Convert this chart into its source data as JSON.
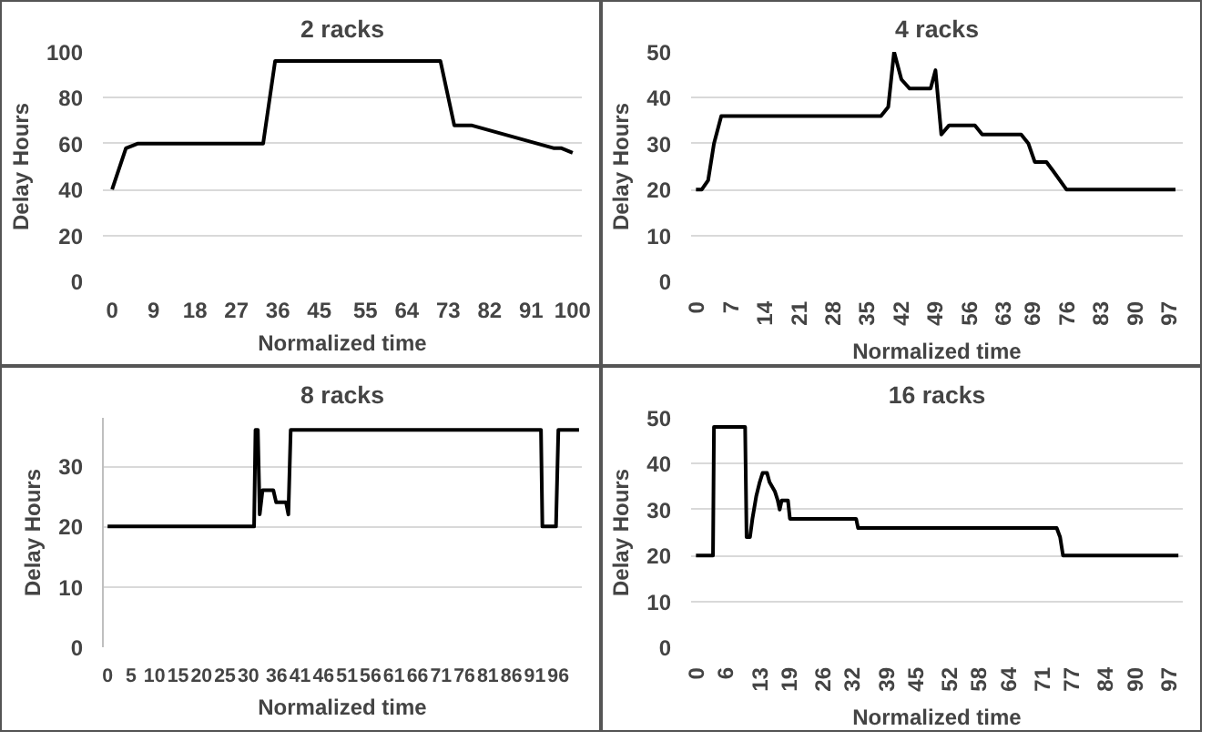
{
  "chart_data": [
    {
      "type": "line",
      "title": "2 racks",
      "xlabel": "Normalized time",
      "ylabel": "Delay Hours",
      "color": "#000000",
      "grid": "y",
      "line_style": "solid",
      "x": [
        0,
        3,
        5.5,
        32.8,
        35.4,
        71.3,
        74.3,
        78,
        96,
        97.6,
        100
      ],
      "values": [
        40,
        58,
        60,
        60,
        96,
        96,
        68,
        68,
        58,
        58,
        56
      ],
      "xlim": [
        -2,
        102
      ],
      "xticks": [
        0,
        9,
        18,
        27,
        36,
        45,
        55,
        64,
        73,
        82,
        91,
        100
      ],
      "ylim": [
        0,
        100
      ],
      "yticks": [
        0,
        20,
        40,
        60,
        80,
        100
      ]
    },
    {
      "type": "line",
      "title": "4 racks",
      "xlabel": "Normalized time",
      "ylabel": "Delay Hours",
      "color": "#000000",
      "grid": "y",
      "line_style": "solid",
      "x": [
        0,
        1.2,
        2.5,
        3.7,
        5.2,
        38,
        39.5,
        40.7,
        42.2,
        43.9,
        48.2,
        49.2,
        50.4,
        52,
        57.3,
        58.8,
        66.8,
        68.3,
        69.6,
        72,
        73.4,
        76.1,
        98.5
      ],
      "values": [
        20,
        20,
        22,
        30,
        36,
        36,
        38,
        50,
        44,
        42,
        42,
        46,
        32,
        34,
        34,
        32,
        32,
        30,
        26,
        26,
        24,
        20,
        20
      ],
      "xlim": [
        -1,
        100
      ],
      "xticks": [
        0,
        7,
        14,
        21,
        28,
        35,
        42,
        49,
        56,
        63,
        69,
        76,
        83,
        90,
        97
      ],
      "ylim": [
        0,
        50
      ],
      "yticks": [
        0,
        10,
        20,
        30,
        40,
        50
      ]
    },
    {
      "type": "line",
      "title": "8 racks",
      "xlabel": "Normalized time",
      "ylabel": "Delay Hours",
      "color": "#000000",
      "grid": "y",
      "line_style": "solid",
      "x": [
        0,
        31.2,
        31.5,
        32,
        32.4,
        33,
        35.3,
        35.9,
        38,
        38.5,
        39,
        92.3,
        92.6,
        95.5,
        96,
        100.4
      ],
      "values": [
        20,
        20,
        36,
        36,
        22,
        26,
        26,
        24,
        24,
        22,
        36,
        36,
        20,
        20,
        36,
        36
      ],
      "xlim": [
        -1,
        101
      ],
      "xticks": [
        0,
        5,
        10,
        15,
        20,
        25,
        30,
        36,
        41,
        46,
        51,
        56,
        61,
        66,
        71,
        76,
        81,
        86,
        91,
        96
      ],
      "ylim": [
        0,
        38
      ],
      "yticks": [
        0,
        10,
        20,
        30
      ]
    },
    {
      "type": "line",
      "title": "16 racks",
      "xlabel": "Normalized time",
      "ylabel": "Delay Hours",
      "color": "#000000",
      "grid": "y",
      "line_style": "solid",
      "x": [
        0,
        3.5,
        3.7,
        10.1,
        10.4,
        11.1,
        11.6,
        12.4,
        13.1,
        13.7,
        14.6,
        15.1,
        16.2,
        16.8,
        17.2,
        17.6,
        18.9,
        19.3,
        32.9,
        33.3,
        74.1,
        74.8,
        75.4,
        99.1
      ],
      "values": [
        20,
        20,
        48,
        48,
        24,
        24,
        28,
        33,
        36,
        38,
        38,
        36,
        34,
        32,
        30,
        32,
        32,
        28,
        28,
        26,
        26,
        24,
        20,
        20
      ],
      "xlim": [
        -1,
        100
      ],
      "xticks": [
        0,
        6,
        13,
        19,
        26,
        32,
        39,
        45,
        52,
        58,
        64,
        71,
        77,
        84,
        90,
        97
      ],
      "ylim": [
        0,
        50
      ],
      "yticks": [
        0,
        10,
        20,
        30,
        40,
        50
      ]
    }
  ]
}
